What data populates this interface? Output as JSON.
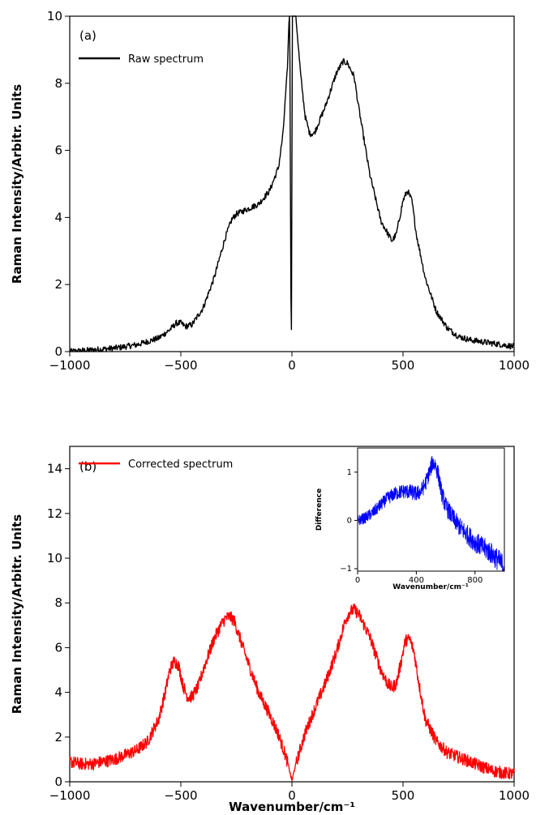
{
  "chart_data": [
    {
      "type": "line",
      "panel_label": "(a)",
      "xlabel": "",
      "ylabel": "Raman Intensity/Arbitr. Units",
      "xlim": [
        -1000,
        1000
      ],
      "ylim": [
        0,
        10
      ],
      "xticks": [
        -1000,
        -500,
        0,
        500,
        1000
      ],
      "yticks": [
        0,
        2,
        4,
        6,
        8,
        10
      ],
      "xtick_labels": [
        "−1000",
        "−500",
        "0",
        "500",
        "1000"
      ],
      "ytick_labels": [
        "0",
        "2",
        "4",
        "6",
        "8",
        "10"
      ],
      "legend": "top-left",
      "series": [
        {
          "name": "Raw spectrum",
          "color": "#000000",
          "x": [
            -1000,
            -900,
            -800,
            -700,
            -600,
            -550,
            -520,
            -500,
            -480,
            -450,
            -400,
            -350,
            -300,
            -270,
            -250,
            -200,
            -150,
            -100,
            -60,
            -40,
            -20,
            -10,
            -5,
            -3,
            -1,
            1,
            3,
            5,
            10,
            20,
            40,
            60,
            80,
            100,
            150,
            200,
            230,
            250,
            280,
            300,
            350,
            400,
            450,
            470,
            500,
            520,
            540,
            560,
            600,
            650,
            700,
            750,
            800,
            850,
            900,
            950,
            1000
          ],
          "y": [
            0.0,
            0.05,
            0.1,
            0.2,
            0.4,
            0.65,
            0.85,
            0.85,
            0.75,
            0.8,
            1.3,
            2.2,
            3.4,
            3.95,
            4.1,
            4.25,
            4.4,
            4.8,
            5.5,
            6.5,
            8.5,
            10.5,
            2.0,
            0.7,
            0.7,
            10.5,
            10.5,
            10.5,
            10.5,
            9.8,
            8.2,
            7.0,
            6.5,
            6.5,
            7.3,
            8.3,
            8.65,
            8.6,
            8.2,
            7.3,
            5.3,
            3.9,
            3.3,
            3.5,
            4.5,
            4.8,
            4.5,
            3.5,
            2.2,
            1.2,
            0.7,
            0.45,
            0.35,
            0.3,
            0.25,
            0.2,
            0.15
          ]
        }
      ]
    },
    {
      "type": "line",
      "panel_label": "(b)",
      "xlabel": "Wavenumber/cm⁻¹",
      "ylabel": "Raman Intensity/Arbitr. Units",
      "xlim": [
        -1000,
        1000
      ],
      "ylim": [
        0,
        15
      ],
      "xticks": [
        -1000,
        -500,
        0,
        500,
        1000
      ],
      "yticks": [
        0,
        2,
        4,
        6,
        8,
        10,
        12,
        14
      ],
      "xtick_labels": [
        "−1000",
        "−500",
        "0",
        "500",
        "1000"
      ],
      "ytick_labels": [
        "0",
        "2",
        "4",
        "6",
        "8",
        "10",
        "12",
        "14"
      ],
      "legend": "top-left",
      "series": [
        {
          "name": "Corrected spectrum",
          "color": "#ff0000",
          "x": [
            -1000,
            -950,
            -900,
            -800,
            -700,
            -650,
            -600,
            -570,
            -550,
            -530,
            -510,
            -490,
            -470,
            -450,
            -420,
            -400,
            -350,
            -320,
            -300,
            -280,
            -260,
            -240,
            -200,
            -150,
            -100,
            -60,
            -30,
            -15,
            -5,
            0,
            5,
            15,
            30,
            60,
            100,
            150,
            200,
            240,
            260,
            280,
            300,
            350,
            400,
            430,
            450,
            470,
            490,
            510,
            530,
            550,
            570,
            600,
            650,
            700,
            800,
            900,
            950,
            1000
          ],
          "y": [
            0.9,
            0.8,
            0.8,
            1.0,
            1.4,
            1.8,
            2.8,
            4.0,
            5.0,
            5.4,
            5.2,
            4.3,
            3.8,
            3.8,
            4.3,
            5.0,
            6.4,
            7.0,
            7.3,
            7.4,
            7.2,
            6.6,
            5.4,
            4.0,
            3.0,
            2.1,
            1.2,
            0.7,
            0.25,
            0.05,
            0.25,
            0.7,
            1.2,
            2.2,
            3.2,
            4.4,
            5.8,
            7.2,
            7.6,
            7.7,
            7.5,
            6.5,
            5.0,
            4.4,
            4.2,
            4.4,
            5.3,
            6.3,
            6.4,
            5.8,
            4.5,
            2.8,
            1.8,
            1.3,
            0.9,
            0.5,
            0.4,
            0.35
          ]
        }
      ]
    },
    {
      "type": "line",
      "panel_label": "",
      "xlabel": "Wavenumber/cm⁻¹",
      "ylabel": "Difference",
      "xlim": [
        0,
        1000
      ],
      "ylim": [
        -1.05,
        1.5
      ],
      "xticks": [
        0,
        400,
        800
      ],
      "yticks": [
        -1,
        0,
        1
      ],
      "xtick_labels": [
        "0",
        "400",
        "800"
      ],
      "ytick_labels": [
        "−1",
        "0",
        "1"
      ],
      "series": [
        {
          "name": "",
          "color": "#0000ff",
          "x": [
            0,
            50,
            100,
            150,
            200,
            250,
            300,
            350,
            400,
            430,
            460,
            490,
            510,
            530,
            550,
            570,
            600,
            650,
            700,
            750,
            800,
            850,
            900,
            950,
            1000
          ],
          "y": [
            0.0,
            0.05,
            0.15,
            0.3,
            0.45,
            0.55,
            0.6,
            0.6,
            0.55,
            0.6,
            0.75,
            1.0,
            1.2,
            1.15,
            0.95,
            0.6,
            0.3,
            0.05,
            -0.15,
            -0.3,
            -0.45,
            -0.55,
            -0.65,
            -0.8,
            -0.95
          ]
        }
      ]
    }
  ]
}
